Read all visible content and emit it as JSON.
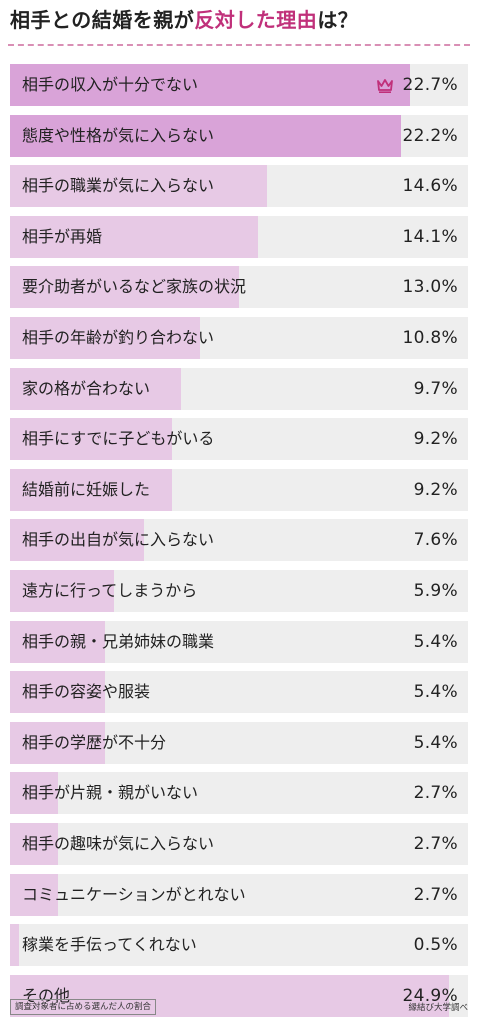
{
  "title": {
    "part1": "相手との結婚を親が",
    "highlight": "反対した理由",
    "part2": "は？"
  },
  "footnote": "調査対象者に占める選んだ人の割合",
  "source": "縁結び大学調べ",
  "colors": {
    "accent": "#c0307a",
    "bar_top": "#d9a3d8",
    "bar": "#e7c9e5",
    "row_bg": "#eeeeee"
  },
  "chart_data": {
    "type": "bar",
    "orientation": "horizontal",
    "categories": [
      "相手の収入が十分でない",
      "態度や性格が気に入らない",
      "相手の職業が気に入らない",
      "相手が再婚",
      "要介助者がいるなど家族の状況",
      "相手の年齢が釣り合わない",
      "家の格が合わない",
      "相手にすでに子どもがいる",
      "結婚前に妊娠した",
      "相手の出自が気に入らない",
      "遠方に行ってしまうから",
      "相手の親・兄弟姉妹の職業",
      "相手の容姿や服装",
      "相手の学歴が不十分",
      "相手が片親・親がいない",
      "相手の趣味が気に入らない",
      "コミュニケーションがとれない",
      "稼業を手伝ってくれない",
      "その他"
    ],
    "values": [
      22.7,
      22.2,
      14.6,
      14.1,
      13.0,
      10.8,
      9.7,
      9.2,
      9.2,
      7.6,
      5.9,
      5.4,
      5.4,
      5.4,
      2.7,
      2.7,
      2.7,
      0.5,
      24.9
    ],
    "labels": [
      "22.7%",
      "22.2%",
      "14.6%",
      "14.1%",
      "13.0%",
      "10.8%",
      "9.7%",
      "9.2%",
      "9.2%",
      "7.6%",
      "5.9%",
      "5.4%",
      "5.4%",
      "5.4%",
      "2.7%",
      "2.7%",
      "2.7%",
      "0.5%",
      "24.9%"
    ],
    "unit": "%",
    "xlim": [
      0,
      26
    ],
    "highlight_top_count": 2,
    "top_marker_icon": "crown-icon"
  }
}
